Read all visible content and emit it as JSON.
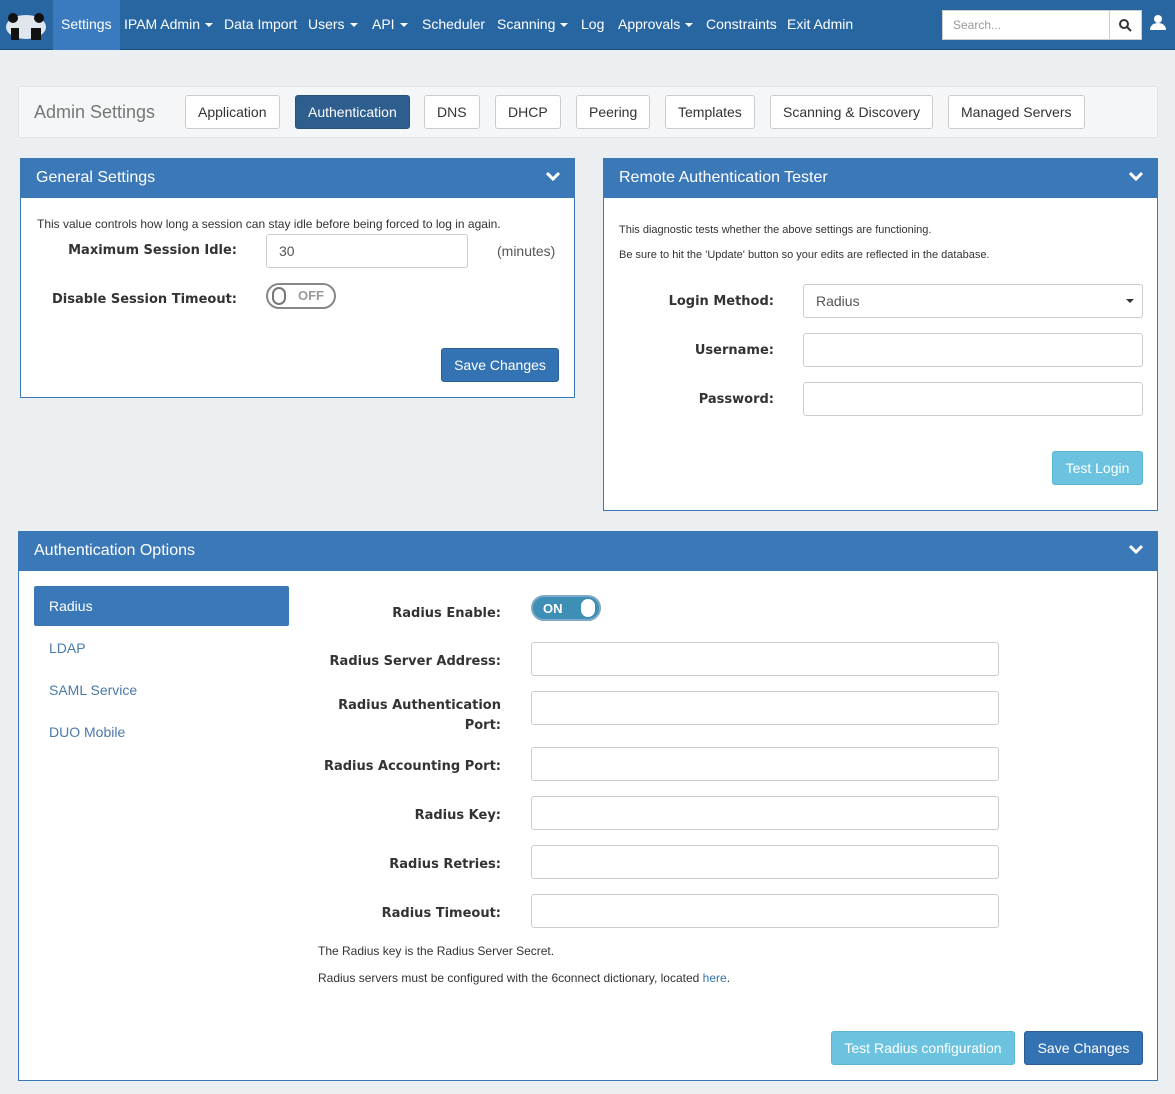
{
  "nav": {
    "items": [
      {
        "label": "Settings",
        "active": true
      },
      {
        "label": "IPAM Admin",
        "dropdown": true
      },
      {
        "label": "Data Import"
      },
      {
        "label": "Users",
        "dropdown": true
      },
      {
        "label": "API",
        "dropdown": true
      },
      {
        "label": "Scheduler"
      },
      {
        "label": "Scanning",
        "dropdown": true
      },
      {
        "label": "Log"
      },
      {
        "label": "Approvals",
        "dropdown": true
      },
      {
        "label": "Constraints"
      },
      {
        "label": "Exit Admin"
      }
    ],
    "search_placeholder": "Search..."
  },
  "tabs": {
    "title": "Admin Settings",
    "items": [
      "Application",
      "Authentication",
      "DNS",
      "DHCP",
      "Peering",
      "Templates",
      "Scanning & Discovery",
      "Managed Servers"
    ],
    "active": "Authentication"
  },
  "general": {
    "title": "General Settings",
    "description": "This value controls how long a session can stay idle before being forced to log in again.",
    "idle_label": "Maximum Session Idle:",
    "idle_value": "30",
    "idle_unit": "(minutes)",
    "timeout_label": "Disable Session Timeout:",
    "timeout_state": "OFF",
    "save": "Save Changes"
  },
  "tester": {
    "title": "Remote Authentication Tester",
    "line1": "This diagnostic tests whether the above settings are functioning.",
    "line2": "Be sure to hit the 'Update' button so your edits are reflected in the database.",
    "method_label": "Login Method:",
    "method_value": "Radius",
    "username_label": "Username:",
    "password_label": "Password:",
    "test": "Test Login"
  },
  "auth": {
    "title": "Authentication Options",
    "side": [
      "Radius",
      "LDAP",
      "SAML Service",
      "DUO Mobile"
    ],
    "active": "Radius",
    "enable_label": "Radius Enable:",
    "enable_state": "ON",
    "fields": [
      "Radius Server Address:",
      "Radius Authentication Port:",
      "Radius Accounting Port:",
      "Radius Key:",
      "Radius Retries:",
      "Radius Timeout:"
    ],
    "note1": "The Radius key is the Radius Server Secret.",
    "note2": "Radius servers must be configured with the 6connect dictionary, located ",
    "note2_link": "here",
    "note2_end": ".",
    "test": "Test Radius configuration",
    "save": "Save Changes"
  },
  "colors": {
    "navbar": "#2866a2",
    "panel_header": "#3b78b7",
    "primary": "#3473b3",
    "info": "#6cc3e0"
  }
}
